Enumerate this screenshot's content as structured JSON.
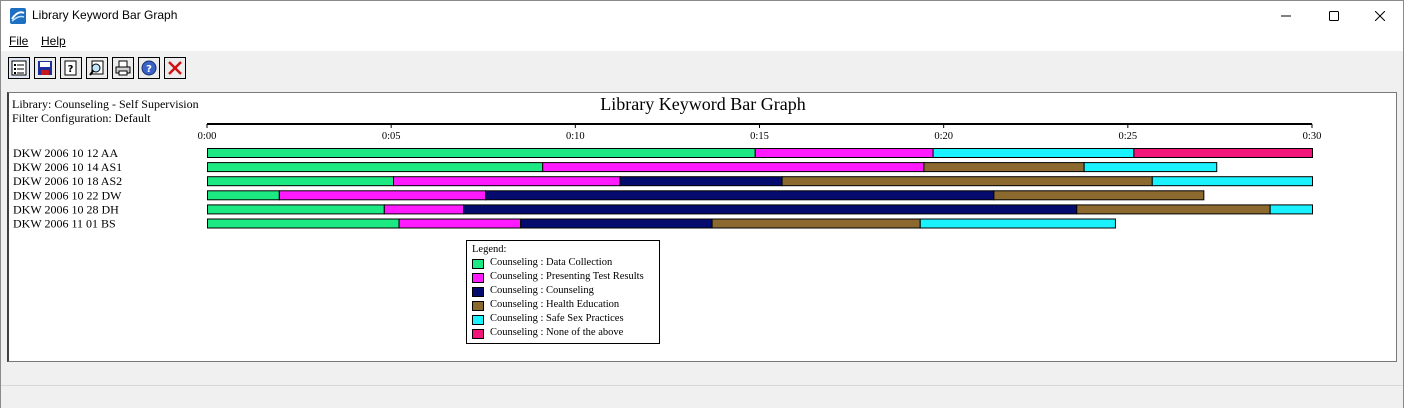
{
  "window": {
    "title": "Library Keyword Bar Graph",
    "icon": "app-logo-icon"
  },
  "menu": {
    "file": "File",
    "help": "Help"
  },
  "toolbar": {
    "buttons": [
      "list-view-icon",
      "save-jpg-icon",
      "help-file-icon",
      "print-preview-icon",
      "print-icon",
      "help-icon",
      "close-icon"
    ]
  },
  "header": {
    "library": "Library: Counseling - Self Supervision",
    "filter": "Filter Configuration: Default"
  },
  "chart_data": {
    "type": "bar",
    "orientation": "horizontal-stacked-timeline",
    "title": "Library Keyword Bar Graph",
    "x_ticks": [
      "0:00",
      "0:05",
      "0:10",
      "0:15",
      "0:20",
      "0:25",
      "0:30"
    ],
    "xlim_minutes": [
      0,
      30
    ],
    "categories": [
      "DKW 2006 10 12 AA",
      "DKW 2006 10 14 AS1",
      "DKW 2006 10 18 AS2",
      "DKW 2006 10 22 DW",
      "DKW 2006 10 28 DH",
      "DKW 2006 11 01 BS"
    ],
    "legend_title": "Legend:",
    "series": [
      {
        "name": "Counseling : Data Collection",
        "color": "#1de982"
      },
      {
        "name": "Counseling : Presenting Test Results",
        "color": "#ff1aff"
      },
      {
        "name": "Counseling : Counseling",
        "color": "#050a6e"
      },
      {
        "name": "Counseling : Health Education",
        "color": "#8c6a2f"
      },
      {
        "name": "Counseling : Safe Sex Practices",
        "color": "#1af2ff"
      },
      {
        "name": "Counseling : None of the above",
        "color": "#f2167a"
      }
    ],
    "segments": [
      [
        [
          0,
          14.87,
          0
        ],
        [
          14.87,
          19.7,
          1
        ],
        [
          19.7,
          25.15,
          4
        ],
        [
          25.15,
          30.0,
          5
        ]
      ],
      [
        [
          0,
          9.1,
          0
        ],
        [
          9.1,
          19.45,
          1
        ],
        [
          19.45,
          23.8,
          3
        ],
        [
          23.8,
          27.4,
          4
        ]
      ],
      [
        [
          0,
          5.05,
          0
        ],
        [
          5.05,
          11.2,
          1
        ],
        [
          11.2,
          15.6,
          2
        ],
        [
          15.6,
          25.65,
          3
        ],
        [
          25.65,
          30.0,
          4
        ]
      ],
      [
        [
          0,
          1.95,
          0
        ],
        [
          1.95,
          7.55,
          1
        ],
        [
          7.55,
          21.35,
          2
        ],
        [
          21.35,
          27.05,
          3
        ]
      ],
      [
        [
          0,
          4.8,
          0
        ],
        [
          4.8,
          6.95,
          1
        ],
        [
          6.95,
          23.6,
          2
        ],
        [
          23.6,
          28.85,
          3
        ],
        [
          28.85,
          30.0,
          4
        ]
      ],
      [
        [
          0,
          5.2,
          0
        ],
        [
          5.2,
          8.5,
          1
        ],
        [
          8.5,
          13.7,
          2
        ],
        [
          13.7,
          19.35,
          3
        ],
        [
          19.35,
          24.65,
          4
        ]
      ]
    ]
  }
}
